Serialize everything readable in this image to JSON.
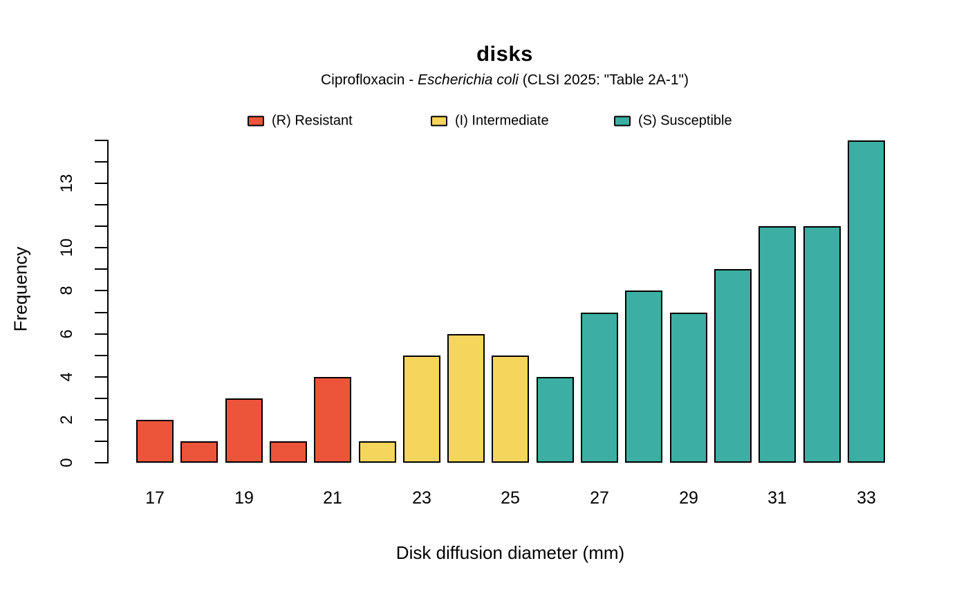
{
  "title": "disks",
  "subtitle": {
    "prefix": "Ciprofloxacin - ",
    "italic": "Escherichia coli",
    "suffix": " (CLSI 2025: \"Table 2A-1\")"
  },
  "legend": [
    {
      "key": "resistant",
      "label": "(R) Resistant",
      "color": "#ED553B"
    },
    {
      "key": "intermediate",
      "label": "(I) Intermediate",
      "color": "#F6D55C"
    },
    {
      "key": "susceptible",
      "label": "(S) Susceptible",
      "color": "#3CAEA3"
    }
  ],
  "chart_data": {
    "type": "bar",
    "title": "disks",
    "subtitle": "Ciprofloxacin - Escherichia coli (CLSI 2025: \"Table 2A-1\")",
    "xlabel": "Disk diffusion diameter (mm)",
    "ylabel": "Frequency",
    "x": [
      17,
      18,
      19,
      20,
      21,
      22,
      23,
      24,
      25,
      26,
      27,
      28,
      29,
      30,
      31,
      32,
      33
    ],
    "values": [
      2,
      1,
      3,
      1,
      4,
      1,
      5,
      6,
      5,
      4,
      7,
      8,
      7,
      9,
      11,
      11,
      15
    ],
    "sir_category": [
      "R",
      "R",
      "R",
      "R",
      "R",
      "I",
      "I",
      "I",
      "I",
      "S",
      "S",
      "S",
      "S",
      "S",
      "S",
      "S",
      "S"
    ],
    "colors": {
      "R": "#ED553B",
      "I": "#F6D55C",
      "S": "#3CAEA3"
    },
    "bar_border_color": "#000000",
    "ylim": [
      0,
      15
    ],
    "y_minor_tick_step": 1,
    "y_tick_labels": [
      0,
      2,
      4,
      6,
      8,
      10,
      13
    ],
    "x_tick_labels": [
      17,
      19,
      21,
      23,
      25,
      27,
      29,
      31,
      33
    ],
    "grid": false,
    "legend_position": "top"
  }
}
